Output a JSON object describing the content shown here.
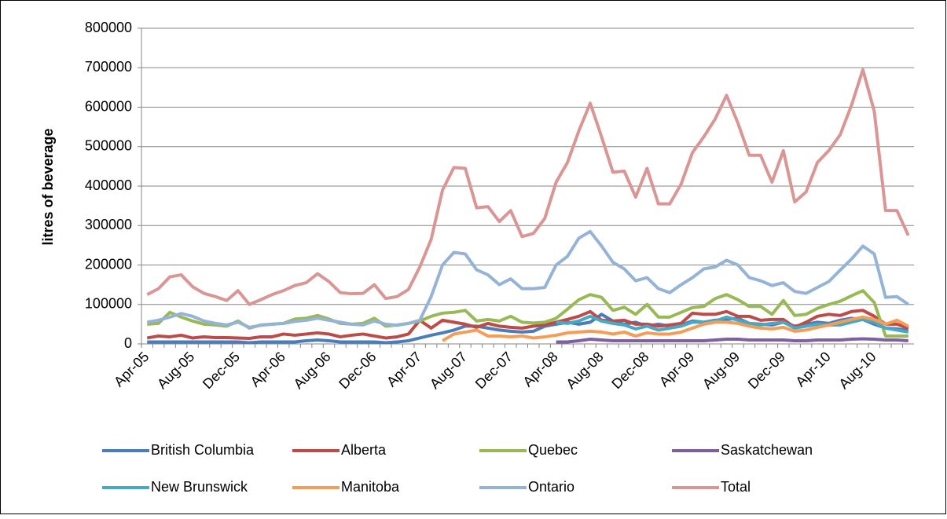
{
  "chart_data": {
    "type": "line",
    "y_label": "litres of beverage",
    "categories": [
      "Apr-05",
      null,
      null,
      null,
      "Aug-05",
      null,
      null,
      null,
      "Dec-05",
      null,
      null,
      null,
      "Apr-06",
      null,
      null,
      null,
      "Aug-06",
      null,
      null,
      null,
      "Dec-06",
      null,
      null,
      null,
      "Apr-07",
      null,
      null,
      null,
      "Aug-07",
      null,
      null,
      null,
      "Dec-07",
      null,
      null,
      null,
      "Apr-08",
      null,
      null,
      null,
      "Aug-08",
      null,
      null,
      null,
      "Dec-08",
      null,
      null,
      null,
      "Apr-09",
      null,
      null,
      null,
      "Aug-09",
      null,
      null,
      null,
      "Dec-09",
      null,
      null,
      null,
      "Apr-10",
      null,
      null,
      null,
      "Aug-10",
      null,
      null,
      null
    ],
    "ylim": [
      0,
      800000
    ],
    "yticks": [
      0,
      100000,
      200000,
      300000,
      400000,
      500000,
      600000,
      700000,
      800000
    ],
    "grid": true,
    "legend": "bottom",
    "series": [
      {
        "name": "British Columbia",
        "color": "#4a7ebb",
        "values": [
          5000,
          5000,
          5000,
          5000,
          5000,
          5000,
          5000,
          5000,
          5000,
          3000,
          5000,
          5000,
          5000,
          5000,
          8000,
          10000,
          8000,
          5000,
          5000,
          5000,
          5000,
          3000,
          5000,
          8000,
          15000,
          22000,
          28000,
          35000,
          45000,
          45000,
          40000,
          35000,
          32000,
          30000,
          32000,
          45000,
          50000,
          55000,
          50000,
          55000,
          75000,
          58000,
          50000,
          55000,
          45000,
          50000,
          45000,
          48000,
          58000,
          55000,
          60000,
          62000,
          65000,
          52000,
          50000,
          48000,
          55000,
          45000,
          50000,
          55000,
          52000,
          60000,
          65000,
          62000,
          50000,
          40000,
          38000,
          35000
        ]
      },
      {
        "name": "Alberta",
        "color": "#be4b48",
        "values": [
          15000,
          20000,
          18000,
          22000,
          15000,
          18000,
          16000,
          16000,
          15000,
          14000,
          18000,
          18000,
          25000,
          22000,
          25000,
          28000,
          25000,
          18000,
          22000,
          25000,
          20000,
          15000,
          18000,
          25000,
          60000,
          40000,
          60000,
          55000,
          50000,
          42000,
          52000,
          45000,
          42000,
          40000,
          45000,
          48000,
          55000,
          62000,
          70000,
          82000,
          60000,
          58000,
          60000,
          50000,
          50000,
          45000,
          48000,
          52000,
          78000,
          75000,
          75000,
          82000,
          70000,
          70000,
          60000,
          62000,
          62000,
          42000,
          55000,
          70000,
          75000,
          72000,
          82000,
          85000,
          70000,
          50000,
          50000,
          40000
        ]
      },
      {
        "name": "Quebec",
        "color": "#98b954",
        "values": [
          50000,
          52000,
          80000,
          68000,
          58000,
          50000,
          48000,
          45000,
          58000,
          40000,
          48000,
          50000,
          52000,
          63000,
          65000,
          72000,
          63000,
          52000,
          50000,
          52000,
          65000,
          45000,
          48000,
          52000,
          58000,
          70000,
          78000,
          80000,
          85000,
          58000,
          62000,
          58000,
          70000,
          55000,
          53000,
          55000,
          65000,
          88000,
          112000,
          125000,
          118000,
          85000,
          93000,
          75000,
          100000,
          68000,
          68000,
          80000,
          92000,
          95000,
          115000,
          125000,
          112000,
          95000,
          95000,
          75000,
          110000,
          72000,
          75000,
          90000,
          100000,
          108000,
          122000,
          135000,
          105000,
          20000,
          20000,
          20000
        ]
      },
      {
        "name": "Saskatchewan",
        "color": "#7d60a0",
        "values": [
          null,
          null,
          null,
          null,
          null,
          null,
          null,
          null,
          null,
          null,
          null,
          null,
          null,
          null,
          null,
          null,
          null,
          null,
          null,
          null,
          null,
          null,
          null,
          null,
          null,
          null,
          null,
          null,
          null,
          null,
          null,
          null,
          null,
          null,
          null,
          null,
          5000,
          5000,
          8000,
          12000,
          10000,
          8000,
          8000,
          8000,
          8000,
          8000,
          8000,
          8000,
          8000,
          8000,
          10000,
          12000,
          12000,
          10000,
          10000,
          10000,
          10000,
          8000,
          8000,
          10000,
          10000,
          10000,
          12000,
          13000,
          12000,
          10000,
          10000,
          8000
        ]
      },
      {
        "name": "New Brunswick",
        "color": "#46aac5",
        "values": [
          null,
          null,
          null,
          null,
          null,
          null,
          null,
          null,
          null,
          null,
          null,
          null,
          null,
          null,
          null,
          null,
          null,
          null,
          null,
          null,
          null,
          null,
          null,
          null,
          null,
          null,
          null,
          null,
          null,
          null,
          null,
          null,
          null,
          null,
          null,
          null,
          55000,
          52000,
          58000,
          70000,
          58000,
          52000,
          48000,
          38000,
          45000,
          35000,
          40000,
          45000,
          55000,
          55000,
          58000,
          68000,
          60000,
          52000,
          48000,
          52000,
          55000,
          40000,
          45000,
          50000,
          48000,
          48000,
          55000,
          62000,
          55000,
          40000,
          35000,
          30000
        ]
      },
      {
        "name": "Manitoba",
        "color": "#f59d56",
        "values": [
          null,
          null,
          null,
          null,
          null,
          null,
          null,
          null,
          null,
          null,
          null,
          null,
          null,
          null,
          null,
          null,
          null,
          null,
          null,
          null,
          null,
          null,
          null,
          null,
          null,
          null,
          8000,
          25000,
          30000,
          35000,
          20000,
          20000,
          18000,
          20000,
          15000,
          18000,
          22000,
          28000,
          30000,
          32000,
          30000,
          25000,
          30000,
          20000,
          28000,
          25000,
          25000,
          30000,
          40000,
          50000,
          55000,
          55000,
          52000,
          45000,
          40000,
          38000,
          42000,
          32000,
          35000,
          42000,
          48000,
          55000,
          62000,
          68000,
          62000,
          50000,
          60000,
          45000
        ]
      },
      {
        "name": "Ontario",
        "color": "#95b3d7",
        "values": [
          55000,
          60000,
          68000,
          77000,
          70000,
          58000,
          52000,
          48000,
          55000,
          42000,
          47000,
          50000,
          52000,
          57000,
          60000,
          65000,
          60000,
          55000,
          50000,
          48000,
          58000,
          50000,
          47000,
          52000,
          60000,
          120000,
          200000,
          232000,
          228000,
          188000,
          175000,
          150000,
          165000,
          140000,
          140000,
          143000,
          200000,
          222000,
          268000,
          285000,
          248000,
          207000,
          190000,
          160000,
          168000,
          140000,
          130000,
          150000,
          168000,
          190000,
          195000,
          212000,
          200000,
          168000,
          160000,
          148000,
          155000,
          133000,
          128000,
          143000,
          158000,
          187000,
          215000,
          248000,
          228000,
          118000,
          120000,
          100000
        ]
      },
      {
        "name": "Total",
        "color": "#d99694",
        "values": [
          125000,
          140000,
          170000,
          175000,
          145000,
          128000,
          120000,
          110000,
          135000,
          100000,
          112000,
          125000,
          135000,
          148000,
          155000,
          178000,
          158000,
          130000,
          127000,
          128000,
          150000,
          115000,
          120000,
          138000,
          195000,
          265000,
          390000,
          447000,
          445000,
          345000,
          348000,
          310000,
          338000,
          272000,
          280000,
          318000,
          410000,
          460000,
          540000,
          610000,
          525000,
          435000,
          438000,
          372000,
          445000,
          355000,
          355000,
          405000,
          485000,
          525000,
          570000,
          630000,
          560000,
          478000,
          478000,
          410000,
          490000,
          360000,
          385000,
          460000,
          490000,
          530000,
          605000,
          695000,
          590000,
          338000,
          338000,
          275000
        ]
      }
    ]
  }
}
